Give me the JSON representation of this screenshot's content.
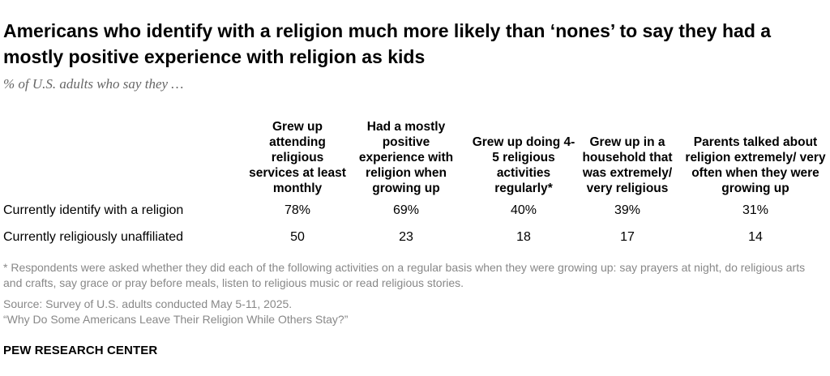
{
  "title": "Americans who identify with a religion much more likely than ‘nones’ to say they had a mostly positive experience with religion as kids",
  "subtitle": "% of U.S. adults who say they …",
  "chart_data": {
    "type": "table",
    "columns": [
      "Grew up attending religious services at least monthly",
      "Had a mostly positive experience with religion when growing up",
      "Grew up doing 4-5 religious activities regularly*",
      "Grew up in a household that was extremely/ very religious",
      "Parents talked about religion extremely/ very often when they were growing up"
    ],
    "rows": [
      {
        "label": "Currently identify with a religion",
        "values": [
          78,
          69,
          40,
          39,
          31
        ],
        "display": [
          "78%",
          "69%",
          "40%",
          "39%",
          "31%"
        ]
      },
      {
        "label": "Currently religiously unaffiliated",
        "values": [
          50,
          23,
          18,
          17,
          14
        ],
        "display": [
          "50",
          "23",
          "18",
          "17",
          "14"
        ]
      }
    ],
    "unit": "%"
  },
  "notes": {
    "footnote": "* Respondents were asked whether they did each of the following activities on a regular basis when they were growing up: say prayers at night, do religious arts and crafts, say grace or pray before meals, listen to religious music or read religious stories.",
    "source": "Source: Survey of U.S. adults conducted May 5-11, 2025.",
    "report": "“Why Do Some Americans Leave Their Religion While Others Stay?”"
  },
  "brand": "PEW RESEARCH CENTER"
}
